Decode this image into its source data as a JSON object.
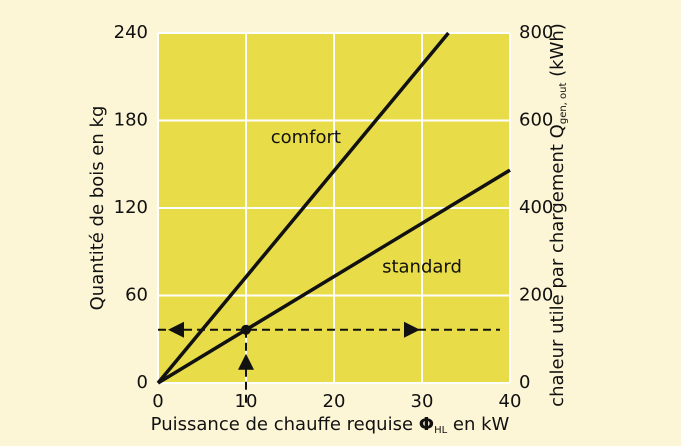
{
  "chart_data": {
    "type": "line",
    "x_label": [
      "Puissance de chauffe requise ",
      "Φ",
      "HL",
      " en kW"
    ],
    "y_label": "Quantité de bois en kg",
    "y2_label": [
      "chaleur utile par chargement Q",
      "gen, out",
      " (kWh)"
    ],
    "series": [
      {
        "name": "comfort",
        "color": "#111111",
        "x": [
          0,
          33
        ],
        "values": [
          0,
          240
        ]
      },
      {
        "name": "standard",
        "color": "#111111",
        "x": [
          0,
          40
        ],
        "values": [
          0,
          146
        ]
      }
    ],
    "marker": {
      "x": 10,
      "y": 36.5
    },
    "xlim": [
      0,
      40
    ],
    "xticks": [
      0,
      10,
      20,
      30,
      40
    ],
    "ylim": [
      0,
      240
    ],
    "yticks": [
      0,
      60,
      120,
      180,
      240
    ],
    "y2lim": [
      0,
      800
    ],
    "y2ticks": [
      0,
      200,
      400,
      600,
      800
    ],
    "grid": true,
    "plot_color": "#e8dc48"
  }
}
